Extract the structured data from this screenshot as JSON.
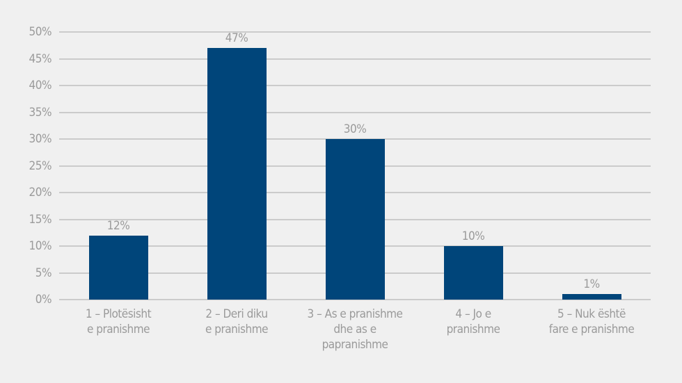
{
  "chart_data": {
    "type": "bar",
    "title": "",
    "xlabel": "",
    "ylabel": "",
    "ylim": [
      0,
      50
    ],
    "y_ticks": [
      "0%",
      "5%",
      "10%",
      "15%",
      "20%",
      "25%",
      "30%",
      "35%",
      "40%",
      "45%",
      "50%"
    ],
    "grid": true,
    "legend": null,
    "categories": [
      "1 – Plotësisht e pranishme",
      "2 – Deri diku e pranishme",
      "3 – As e pranishme dhe as e papranishme",
      "4 – Jo e pranishme",
      "5 – Nuk është fare e pranishme"
    ],
    "category_lines": [
      [
        "1 – Plotësisht",
        "e pranishme"
      ],
      [
        "2 – Deri diku",
        "e pranishme"
      ],
      [
        "3 – As e pranishme",
        "dhe as e",
        "papranishme"
      ],
      [
        "4 – Jo e",
        "pranishme"
      ],
      [
        "5 – Nuk është",
        "fare e pranishme"
      ]
    ],
    "values": [
      12,
      47,
      30,
      10,
      1
    ],
    "data_labels": [
      "12%",
      "47%",
      "30%",
      "10%",
      "1%"
    ],
    "colors": {
      "bar": "#00457a",
      "text": "#9a9a9a",
      "grid": "#cbcbcb",
      "background": "#f0f0f0"
    }
  }
}
